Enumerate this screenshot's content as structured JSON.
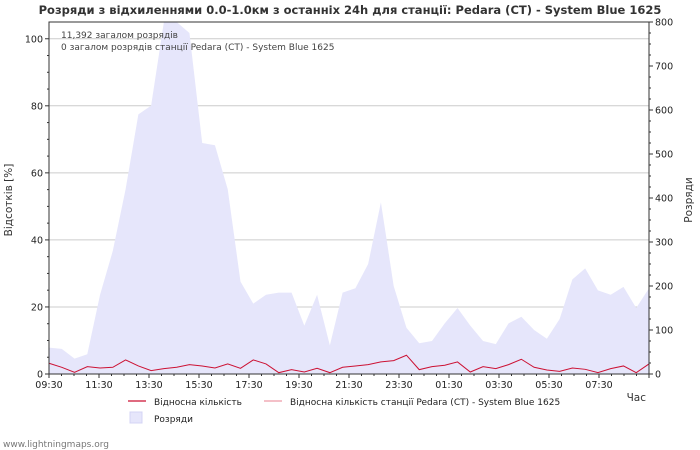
{
  "chart_data": {
    "type": "line",
    "title": "Розряди з відхиленнями 0.0-1.0км з останніх 24h для станції: Pedara (CT) - System Blue 1625",
    "ylabel_left": "Відсотків  [%]",
    "ylabel_right": "Розряди",
    "xlabel": "Час",
    "ylim_left": [
      0,
      105
    ],
    "ylim_right": [
      0,
      800
    ],
    "yticks_left": [
      0,
      20,
      40,
      60,
      80,
      100
    ],
    "yticks_right": [
      0,
      100,
      200,
      300,
      400,
      500,
      600,
      700,
      800
    ],
    "x_tick_labels": [
      "09:30",
      "11:30",
      "13:30",
      "15:30",
      "17:30",
      "19:30",
      "21:30",
      "23:30",
      "01:30",
      "03:30",
      "05:30",
      "07:30"
    ],
    "annotations": [
      "11,392 загалом розрядів",
      "0 загалом розрядів станції Pedara (CT) - System Blue 1625"
    ],
    "series": [
      {
        "name": "Розряди",
        "axis": "right",
        "style": "area",
        "color": "#e6e6fb",
        "values": [
          60,
          57,
          35,
          45,
          180,
          280,
          420,
          590,
          610,
          800,
          800,
          775,
          525,
          520,
          420,
          210,
          160,
          180,
          185,
          185,
          110,
          180,
          65,
          185,
          195,
          250,
          390,
          200,
          105,
          70,
          75,
          115,
          150,
          110,
          75,
          68,
          115,
          130,
          100,
          80,
          125,
          215,
          240,
          190,
          180,
          198,
          150,
          195
        ]
      },
      {
        "name": "Відносна кількість",
        "axis": "left",
        "style": "line",
        "color": "#cc1133",
        "values": [
          3.2,
          2.0,
          0.5,
          2.2,
          1.8,
          2.0,
          4.2,
          2.4,
          1.0,
          1.6,
          2.0,
          2.8,
          2.4,
          1.8,
          3.0,
          1.7,
          4.2,
          3.0,
          0.4,
          1.3,
          0.6,
          1.7,
          0.4,
          2.0,
          2.4,
          2.8,
          3.6,
          4.0,
          5.6,
          1.3,
          2.2,
          2.6,
          3.6,
          0.6,
          2.2,
          1.6,
          2.8,
          4.4,
          2.0,
          1.2,
          0.8,
          1.8,
          1.4,
          0.4,
          1.6,
          2.4,
          0.4,
          3.0
        ]
      },
      {
        "name": "Відносна кількість станції Pedara (CT) - System Blue 1625",
        "axis": "left",
        "style": "line",
        "color": "#ee9aa8",
        "values": [
          0,
          0,
          0,
          0,
          0,
          0,
          0,
          0,
          0,
          0,
          0,
          0,
          0,
          0,
          0,
          0,
          0,
          0,
          0,
          0,
          0,
          0,
          0,
          0,
          0,
          0,
          0,
          0,
          0,
          0,
          0,
          0,
          0,
          0,
          0,
          0,
          0,
          0,
          0,
          0,
          0,
          0,
          0,
          0,
          0,
          0,
          0,
          0
        ]
      }
    ],
    "legend": [
      {
        "label": "Відносна кількість",
        "kind": "line",
        "color": "#cc1133"
      },
      {
        "label": "Відносна кількість станції Pedara (CT) - System Blue 1625",
        "kind": "line",
        "color": "#ee9aa8"
      },
      {
        "label": "Розряди",
        "kind": "box",
        "color": "#e6e6fb"
      }
    ]
  },
  "footer": "www.lightningmaps.org"
}
